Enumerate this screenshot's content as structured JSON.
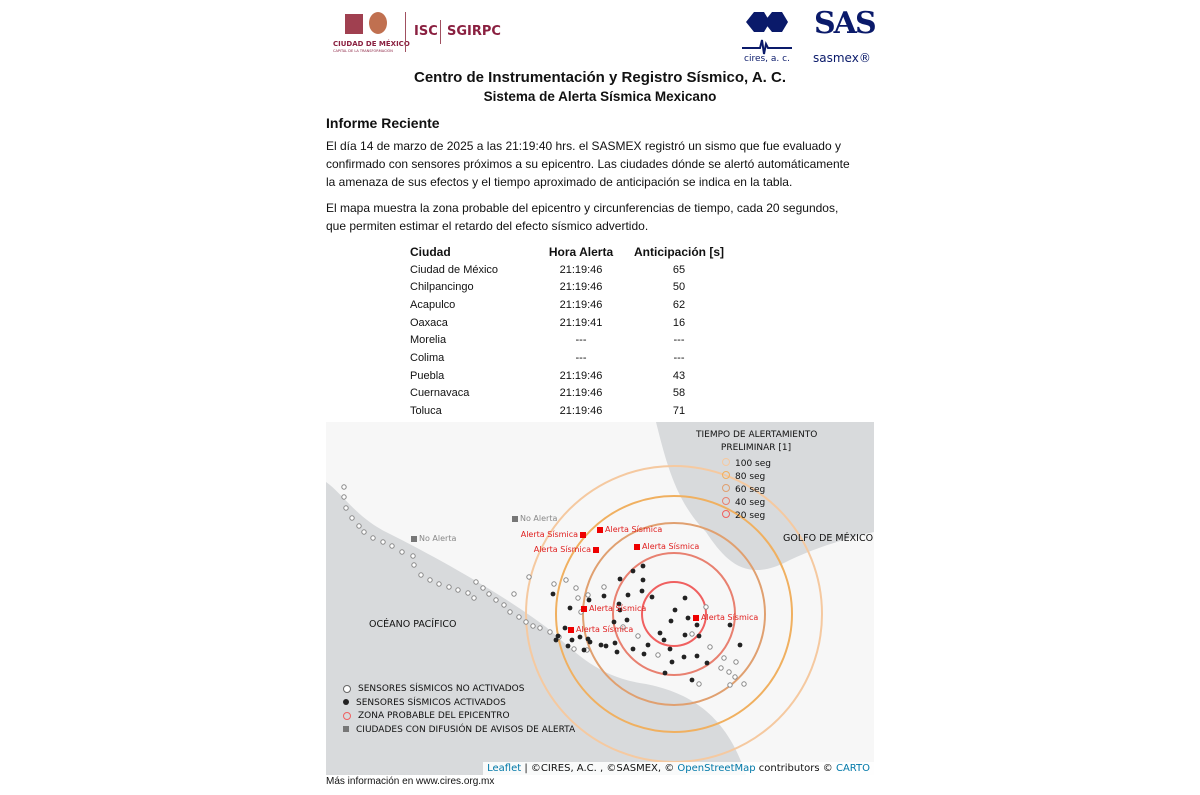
{
  "logos": {
    "cdmx": "CIUDAD DE MÉXICO",
    "cdmx_sub": "CAPITAL DE LA TRANSFORMACIÓN",
    "isc": "ISC",
    "sgirpc": "SGIRPC",
    "cires": "cires, a. c.",
    "sas": "SAS",
    "sasmex": "sasmex®"
  },
  "header": {
    "title": "Centro de Instrumentación y Registro Sísmico, A. C.",
    "subtitle": "Sistema de Alerta Sísmica Mexicano"
  },
  "report": {
    "heading": "Informe Reciente",
    "paragraph1": "El  día  14 de marzo de 2025  a las  21:19:40  hrs.  el SASMEX registró un sismo que fue evaluado y confirmado con sensores próximos a su epicentro. Las ciudades dónde se alertó automáticamente la amenaza de sus efectos y el tiempo aproximado de anticipación se indica en la tabla.",
    "paragraph2": "El mapa muestra la zona probable del epicentro y circunferencias de tiempo, cada 20 segundos, que permiten estimar el retardo del efecto sísmico advertido."
  },
  "table": {
    "headers": [
      "Ciudad",
      "Hora Alerta",
      "Anticipación [s]"
    ],
    "rows": [
      [
        "Ciudad de México",
        "21:19:46",
        "65"
      ],
      [
        "Chilpancingo",
        "21:19:46",
        "50"
      ],
      [
        "Acapulco",
        "21:19:46",
        "62"
      ],
      [
        "Oaxaca",
        "21:19:41",
        "16"
      ],
      [
        "Morelia",
        "---",
        "---"
      ],
      [
        "Colima",
        "---",
        "---"
      ],
      [
        "Puebla",
        "21:19:46",
        "43"
      ],
      [
        "Cuernavaca",
        "21:19:46",
        "58"
      ],
      [
        "Toluca",
        "21:19:46",
        "71"
      ]
    ]
  },
  "map": {
    "legend_title": "TIEMPO DE ALERTAMIENTO",
    "legend_title2": "PRELIMINAR [1]",
    "rings": [
      {
        "label": "100 seg",
        "color": "#f5c9a0"
      },
      {
        "label": "80 seg",
        "color": "#f0b060"
      },
      {
        "label": "60 seg",
        "color": "#e0a070"
      },
      {
        "label": "40 seg",
        "color": "#e88070"
      },
      {
        "label": "20 seg",
        "color": "#f06060"
      }
    ],
    "gulf": "GOLFO DE MÉXICO",
    "pacific": "OCÉANO PACÍFICO",
    "alert_label": "Alerta Sísmica",
    "no_alert_label": "No Alerta",
    "legend": [
      "SENSORES SÍSMICOS NO ACTIVADOS",
      "SENSORES SÍSMICOS ACTIVADOS",
      "ZONA PROBABLE DEL EPICENTRO",
      "CIUDADES CON DIFUSIÓN DE AVISOS DE ALERTA"
    ],
    "attribution": {
      "leaflet": "Leaflet",
      "text1": " | ©CIRES, A.C. , ©SASMEX, © ",
      "osm": "OpenStreetMap",
      "text2": " contributors © ",
      "carto": "CARTO"
    }
  },
  "footer": "Más información en www.cires.org.mx"
}
